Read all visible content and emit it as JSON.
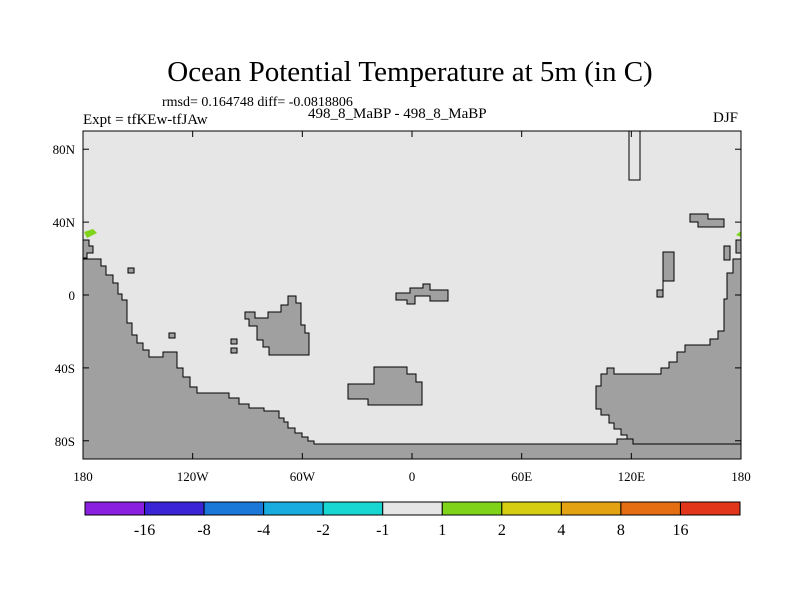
{
  "title": "Ocean Potential Temperature at 5m (in C)",
  "stats_line": "rmsd= 0.164748 diff= -0.0818806",
  "experiment_label": "Expt = tfKEw-tfJAw",
  "case_label": "498_8_MaBP - 498_8_MaBP",
  "season_label": "DJF",
  "map": {
    "projection": "cylindrical equidistant",
    "lon_range": [
      -180,
      180
    ],
    "lat_range": [
      -90,
      90
    ],
    "x_ticks": [
      {
        "lon": -180,
        "label": "180"
      },
      {
        "lon": -120,
        "label": "120W"
      },
      {
        "lon": -60,
        "label": "60W"
      },
      {
        "lon": 0,
        "label": "0"
      },
      {
        "lon": 60,
        "label": "60E"
      },
      {
        "lon": 120,
        "label": "120E"
      },
      {
        "lon": 180,
        "label": "180"
      }
    ],
    "y_ticks": [
      {
        "lat": 80,
        "label": "80N"
      },
      {
        "lat": 40,
        "label": "40N"
      },
      {
        "lat": 0,
        "label": "0"
      },
      {
        "lat": -40,
        "label": "40S"
      },
      {
        "lat": -80,
        "label": "80S"
      }
    ],
    "ocean_color": "#e6e6e6",
    "land_color": "#a0a0a0",
    "anomaly_color": "#7fd41a",
    "anomalies": [
      {
        "lon": -176,
        "lat": 33,
        "bin": "1 to 2"
      },
      {
        "lon": 178,
        "lat": 33,
        "bin": "1 to 2"
      }
    ]
  },
  "colorbar": {
    "bins": [
      {
        "color": "#8a1fe0"
      },
      {
        "color": "#3a24d6"
      },
      {
        "color": "#1b78d8"
      },
      {
        "color": "#19acdf"
      },
      {
        "color": "#18d6d2"
      },
      {
        "color": "#e6e6e6"
      },
      {
        "color": "#7fd41a"
      },
      {
        "color": "#d7cd10"
      },
      {
        "color": "#e3a212"
      },
      {
        "color": "#e56e12"
      },
      {
        "color": "#e2361b"
      }
    ],
    "labels": [
      "-16",
      "-8",
      "-4",
      "-2",
      "-1",
      "1",
      "2",
      "4",
      "8",
      "16"
    ]
  }
}
